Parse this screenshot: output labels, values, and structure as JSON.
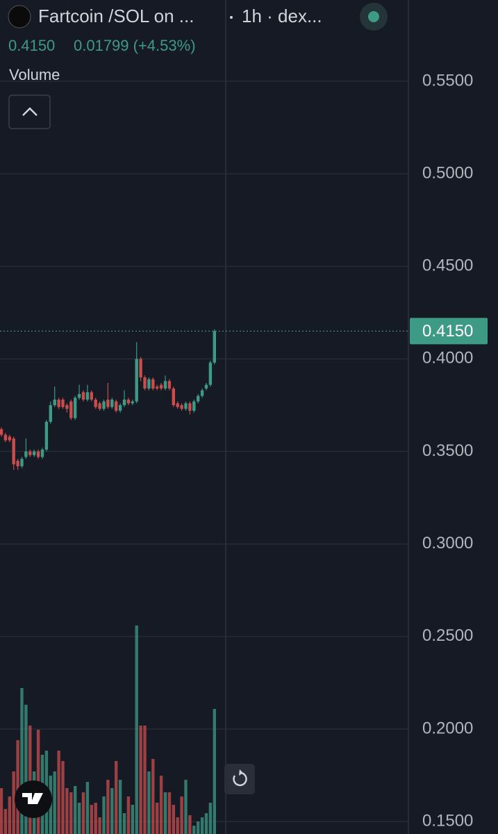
{
  "chart_data": {
    "type": "candlestick",
    "title": "Fartcoin /SOL on ...",
    "interval_label": "1h · dex...",
    "change_label": "0.01799 (+4.53%)",
    "volume_label": "Volume",
    "up_color": "#3d9a84",
    "down_color": "#c94d4d",
    "ylim": [
      0.1433,
      0.5939
    ],
    "yticks": [
      {
        "value": 0.55,
        "label": "0.5500"
      },
      {
        "value": 0.5,
        "label": "0.5000"
      },
      {
        "value": 0.45,
        "label": "0.4500"
      },
      {
        "value": 0.4,
        "label": "0.4000"
      },
      {
        "value": 0.35,
        "label": "0.3500"
      },
      {
        "value": 0.3,
        "label": "0.3000"
      },
      {
        "value": 0.25,
        "label": "0.2500"
      },
      {
        "value": 0.2,
        "label": "0.2000"
      },
      {
        "value": 0.15,
        "label": "0.1500"
      }
    ],
    "grid": true,
    "last_price": {
      "value": 0.415,
      "label": "0.4150"
    },
    "open": [
      0.362,
      0.359,
      0.358,
      0.357,
      0.345,
      0.342,
      0.347,
      0.35,
      0.348,
      0.35,
      0.347,
      0.351,
      0.366,
      0.375,
      0.378,
      0.378,
      0.375,
      0.377,
      0.368,
      0.379,
      0.382,
      0.378,
      0.382,
      0.378,
      0.376,
      0.373,
      0.378,
      0.374,
      0.377,
      0.372,
      0.375,
      0.378,
      0.376,
      0.377,
      0.4,
      0.39,
      0.384,
      0.389,
      0.385,
      0.386,
      0.384,
      0.388,
      0.384,
      0.376,
      0.375,
      0.373,
      0.376,
      0.372,
      0.377,
      0.38,
      0.384,
      0.386,
      0.398
    ],
    "high": [
      0.363,
      0.36,
      0.359,
      0.358,
      0.346,
      0.347,
      0.357,
      0.351,
      0.351,
      0.351,
      0.352,
      0.367,
      0.377,
      0.385,
      0.379,
      0.379,
      0.376,
      0.378,
      0.38,
      0.386,
      0.383,
      0.386,
      0.383,
      0.379,
      0.377,
      0.378,
      0.387,
      0.379,
      0.378,
      0.376,
      0.383,
      0.379,
      0.378,
      0.409,
      0.401,
      0.391,
      0.39,
      0.39,
      0.386,
      0.387,
      0.391,
      0.389,
      0.385,
      0.377,
      0.376,
      0.377,
      0.377,
      0.378,
      0.381,
      0.384,
      0.387,
      0.399,
      0.416
    ],
    "low": [
      0.358,
      0.355,
      0.355,
      0.34,
      0.34,
      0.341,
      0.346,
      0.347,
      0.347,
      0.346,
      0.346,
      0.35,
      0.365,
      0.374,
      0.373,
      0.373,
      0.371,
      0.367,
      0.367,
      0.378,
      0.377,
      0.377,
      0.377,
      0.373,
      0.372,
      0.372,
      0.373,
      0.373,
      0.371,
      0.371,
      0.374,
      0.375,
      0.375,
      0.376,
      0.388,
      0.383,
      0.383,
      0.383,
      0.383,
      0.383,
      0.383,
      0.383,
      0.374,
      0.373,
      0.372,
      0.372,
      0.37,
      0.371,
      0.376,
      0.379,
      0.383,
      0.385,
      0.397
    ],
    "close": [
      0.359,
      0.356,
      0.356,
      0.343,
      0.342,
      0.346,
      0.35,
      0.348,
      0.35,
      0.347,
      0.351,
      0.366,
      0.375,
      0.378,
      0.374,
      0.374,
      0.373,
      0.368,
      0.379,
      0.381,
      0.378,
      0.382,
      0.378,
      0.374,
      0.373,
      0.377,
      0.374,
      0.378,
      0.372,
      0.375,
      0.378,
      0.376,
      0.377,
      0.4,
      0.39,
      0.384,
      0.389,
      0.384,
      0.384,
      0.384,
      0.388,
      0.384,
      0.375,
      0.374,
      0.373,
      0.376,
      0.372,
      0.377,
      0.38,
      0.383,
      0.386,
      0.398,
      0.415
    ],
    "volume": [
      22,
      12,
      18,
      30,
      45,
      70,
      62,
      52,
      30,
      50,
      38,
      40,
      28,
      30,
      40,
      35,
      22,
      20,
      23,
      15,
      20,
      25,
      14,
      15,
      8,
      18,
      26,
      22,
      35,
      26,
      10,
      18,
      14,
      100,
      52,
      52,
      30,
      36,
      15,
      28,
      20,
      20,
      14,
      8,
      18,
      26,
      9,
      4,
      6,
      8,
      10,
      15,
      60
    ]
  }
}
